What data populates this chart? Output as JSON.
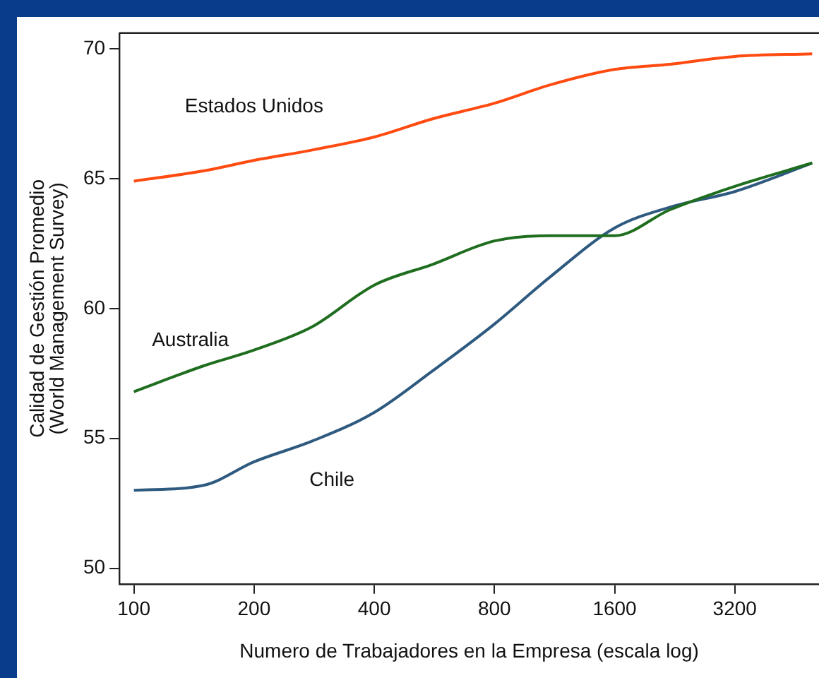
{
  "chart_data": {
    "type": "line",
    "xlabel": "Numero de Trabajadores en la Empresa (escala log)",
    "ylabel": "Calidad de Gestión Promedio\n(World Management Survey)",
    "log": "x",
    "xlim": [
      92,
      5200
    ],
    "xticks": [
      100,
      200,
      400,
      800,
      1600,
      3200
    ],
    "ylim": [
      49.4,
      70.6
    ],
    "yticks": [
      50,
      55,
      60,
      65,
      70
    ],
    "grid": false,
    "legend": false,
    "marker": "none",
    "line_style": "solid",
    "series": [
      {
        "name": "Estados Unidos",
        "color": "#ff4a10",
        "x": [
          100,
          150,
          200,
          280,
          400,
          560,
          800,
          1100,
          1600,
          2200,
          3200,
          5000
        ],
        "values": [
          64.9,
          65.3,
          65.7,
          66.1,
          66.6,
          67.3,
          67.9,
          68.6,
          69.2,
          69.4,
          69.7,
          69.8
        ]
      },
      {
        "name": "Australia",
        "color": "#1f6e1f",
        "x": [
          100,
          150,
          200,
          280,
          400,
          560,
          800,
          1100,
          1600,
          2200,
          3200,
          5000
        ],
        "values": [
          56.8,
          57.8,
          58.4,
          59.3,
          60.9,
          61.7,
          62.6,
          62.8,
          62.8,
          63.8,
          64.7,
          65.6
        ]
      },
      {
        "name": "Chile",
        "color": "#2f5a80",
        "x": [
          100,
          150,
          200,
          280,
          400,
          560,
          800,
          1100,
          1600,
          2200,
          3200,
          5000
        ],
        "values": [
          53.0,
          53.2,
          54.1,
          54.9,
          56.0,
          57.6,
          59.4,
          61.2,
          63.1,
          63.9,
          64.5,
          65.6
        ]
      }
    ]
  }
}
